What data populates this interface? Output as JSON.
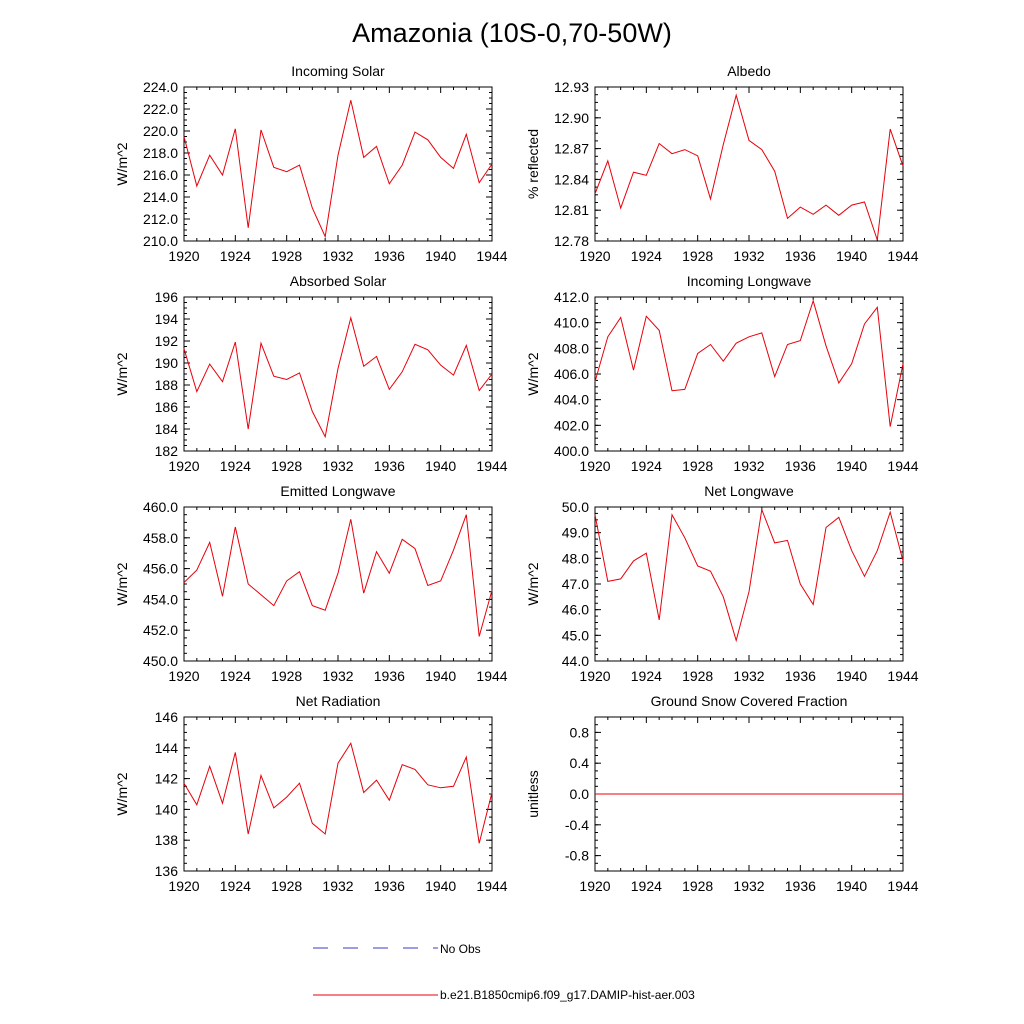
{
  "figure": {
    "title": "Amazonia (10S-0,70-50W)",
    "colors": {
      "model_line": "#e8000b",
      "obs_line": "#3b3bc8",
      "axis": "#000000"
    }
  },
  "legend": {
    "obs_label": "No Obs",
    "model_label": "b.e21.B1850cmip6.f09_g17.DAMIP-hist-aer.003"
  },
  "chart_data": [
    {
      "type": "line",
      "title": "Incoming Solar",
      "ylabel": "W/m^2",
      "x": [
        1920,
        1921,
        1922,
        1923,
        1924,
        1925,
        1926,
        1927,
        1928,
        1929,
        1930,
        1931,
        1932,
        1933,
        1934,
        1935,
        1936,
        1937,
        1938,
        1939,
        1940,
        1941,
        1942,
        1943,
        1944
      ],
      "xlim": [
        1920,
        1944
      ],
      "xticks": [
        "1920",
        "1924",
        "1928",
        "1932",
        "1936",
        "1940",
        "1944"
      ],
      "ylim": [
        210,
        224
      ],
      "yticks": [
        "210.0",
        "212.0",
        "214.0",
        "216.0",
        "218.0",
        "220.0",
        "222.0",
        "224.0"
      ],
      "series": [
        {
          "name": "b.e21.B1850cmip6.f09_g17.DAMIP-hist-aer.003",
          "values": [
            219.5,
            215.0,
            217.8,
            216.0,
            220.2,
            211.2,
            220.1,
            216.7,
            216.3,
            216.9,
            213.0,
            210.4,
            217.8,
            222.8,
            217.6,
            218.6,
            215.2,
            216.9,
            219.9,
            219.2,
            217.6,
            216.6,
            219.7,
            215.3,
            217.0
          ]
        }
      ]
    },
    {
      "type": "line",
      "title": "Albedo",
      "ylabel": "% reflected",
      "x": [
        1920,
        1921,
        1922,
        1923,
        1924,
        1925,
        1926,
        1927,
        1928,
        1929,
        1930,
        1931,
        1932,
        1933,
        1934,
        1935,
        1936,
        1937,
        1938,
        1939,
        1940,
        1941,
        1942,
        1943,
        1944
      ],
      "xlim": [
        1920,
        1944
      ],
      "xticks": [
        "1920",
        "1924",
        "1928",
        "1932",
        "1936",
        "1940",
        "1944"
      ],
      "ylim": [
        12.78,
        12.93
      ],
      "yticks": [
        "12.78",
        "12.81",
        "12.84",
        "12.87",
        "12.90",
        "12.93"
      ],
      "series": [
        {
          "name": "b.e21.B1850cmip6.f09_g17.DAMIP-hist-aer.003",
          "values": [
            12.826,
            12.858,
            12.812,
            12.847,
            12.844,
            12.875,
            12.865,
            12.869,
            12.863,
            12.821,
            12.874,
            12.922,
            12.878,
            12.869,
            12.848,
            12.802,
            12.813,
            12.806,
            12.815,
            12.805,
            12.815,
            12.818,
            12.781,
            12.889,
            12.853
          ]
        }
      ]
    },
    {
      "type": "line",
      "title": "Absorbed Solar",
      "ylabel": "W/m^2",
      "x": [
        1920,
        1921,
        1922,
        1923,
        1924,
        1925,
        1926,
        1927,
        1928,
        1929,
        1930,
        1931,
        1932,
        1933,
        1934,
        1935,
        1936,
        1937,
        1938,
        1939,
        1940,
        1941,
        1942,
        1943,
        1944
      ],
      "xlim": [
        1920,
        1944
      ],
      "xticks": [
        "1920",
        "1924",
        "1928",
        "1932",
        "1936",
        "1940",
        "1944"
      ],
      "ylim": [
        182,
        196
      ],
      "yticks": [
        "182",
        "184",
        "186",
        "188",
        "190",
        "192",
        "194",
        "196"
      ],
      "series": [
        {
          "name": "b.e21.B1850cmip6.f09_g17.DAMIP-hist-aer.003",
          "values": [
            191.3,
            187.4,
            189.9,
            188.3,
            191.9,
            184.0,
            191.8,
            188.8,
            188.5,
            189.1,
            185.6,
            183.3,
            189.5,
            194.1,
            189.7,
            190.6,
            187.6,
            189.2,
            191.7,
            191.2,
            189.8,
            188.9,
            191.6,
            187.5,
            189.0
          ]
        }
      ]
    },
    {
      "type": "line",
      "title": "Incoming Longwave",
      "ylabel": "W/m^2",
      "x": [
        1920,
        1921,
        1922,
        1923,
        1924,
        1925,
        1926,
        1927,
        1928,
        1929,
        1930,
        1931,
        1932,
        1933,
        1934,
        1935,
        1936,
        1937,
        1938,
        1939,
        1940,
        1941,
        1942,
        1943,
        1944
      ],
      "xlim": [
        1920,
        1944
      ],
      "xticks": [
        "1920",
        "1924",
        "1928",
        "1932",
        "1936",
        "1940",
        "1944"
      ],
      "ylim": [
        400,
        412
      ],
      "yticks": [
        "400.0",
        "402.0",
        "404.0",
        "406.0",
        "408.0",
        "410.0",
        "412.0"
      ],
      "series": [
        {
          "name": "b.e21.B1850cmip6.f09_g17.DAMIP-hist-aer.003",
          "values": [
            405.4,
            408.9,
            410.4,
            406.3,
            410.5,
            409.4,
            404.7,
            404.8,
            407.6,
            408.3,
            407.0,
            408.4,
            408.9,
            409.2,
            405.8,
            408.3,
            408.6,
            411.7,
            408.2,
            405.3,
            406.8,
            409.9,
            411.2,
            401.9,
            406.8
          ]
        }
      ]
    },
    {
      "type": "line",
      "title": "Emitted Longwave",
      "ylabel": "W/m^2",
      "x": [
        1920,
        1921,
        1922,
        1923,
        1924,
        1925,
        1926,
        1927,
        1928,
        1929,
        1930,
        1931,
        1932,
        1933,
        1934,
        1935,
        1936,
        1937,
        1938,
        1939,
        1940,
        1941,
        1942,
        1943,
        1944
      ],
      "xlim": [
        1920,
        1944
      ],
      "xticks": [
        "1920",
        "1924",
        "1928",
        "1932",
        "1936",
        "1940",
        "1944"
      ],
      "ylim": [
        450,
        460
      ],
      "yticks": [
        "450.0",
        "452.0",
        "454.0",
        "456.0",
        "458.0",
        "460.0"
      ],
      "series": [
        {
          "name": "b.e21.B1850cmip6.f09_g17.DAMIP-hist-aer.003",
          "values": [
            455.1,
            455.9,
            457.7,
            454.2,
            458.7,
            455.0,
            454.3,
            453.6,
            455.2,
            455.8,
            453.6,
            453.3,
            455.7,
            459.2,
            454.4,
            457.1,
            455.7,
            457.9,
            457.3,
            454.9,
            455.2,
            457.2,
            459.5,
            451.6,
            454.6
          ]
        }
      ]
    },
    {
      "type": "line",
      "title": "Net Longwave",
      "ylabel": "W/m^2",
      "x": [
        1920,
        1921,
        1922,
        1923,
        1924,
        1925,
        1926,
        1927,
        1928,
        1929,
        1930,
        1931,
        1932,
        1933,
        1934,
        1935,
        1936,
        1937,
        1938,
        1939,
        1940,
        1941,
        1942,
        1943,
        1944
      ],
      "xlim": [
        1920,
        1944
      ],
      "xticks": [
        "1920",
        "1924",
        "1928",
        "1932",
        "1936",
        "1940",
        "1944"
      ],
      "ylim": [
        44,
        50
      ],
      "yticks": [
        "44.0",
        "45.0",
        "46.0",
        "47.0",
        "48.0",
        "49.0",
        "50.0"
      ],
      "series": [
        {
          "name": "b.e21.B1850cmip6.f09_g17.DAMIP-hist-aer.003",
          "values": [
            49.7,
            47.1,
            47.2,
            47.9,
            48.2,
            45.6,
            49.7,
            48.8,
            47.7,
            47.5,
            46.5,
            44.8,
            46.7,
            49.9,
            48.6,
            48.7,
            47.0,
            46.2,
            49.2,
            49.6,
            48.3,
            47.3,
            48.3,
            49.8,
            47.9
          ]
        }
      ]
    },
    {
      "type": "line",
      "title": "Net Radiation",
      "ylabel": "W/m^2",
      "x": [
        1920,
        1921,
        1922,
        1923,
        1924,
        1925,
        1926,
        1927,
        1928,
        1929,
        1930,
        1931,
        1932,
        1933,
        1934,
        1935,
        1936,
        1937,
        1938,
        1939,
        1940,
        1941,
        1942,
        1943,
        1944
      ],
      "xlim": [
        1920,
        1944
      ],
      "xticks": [
        "1920",
        "1924",
        "1928",
        "1932",
        "1936",
        "1940",
        "1944"
      ],
      "ylim": [
        136,
        146
      ],
      "yticks": [
        "136",
        "138",
        "140",
        "142",
        "144",
        "146"
      ],
      "series": [
        {
          "name": "b.e21.B1850cmip6.f09_g17.DAMIP-hist-aer.003",
          "values": [
            141.7,
            140.3,
            142.8,
            140.4,
            143.7,
            138.4,
            142.2,
            140.1,
            140.8,
            141.7,
            139.1,
            138.4,
            143.0,
            144.3,
            141.1,
            141.9,
            140.6,
            142.9,
            142.6,
            141.6,
            141.4,
            141.5,
            143.4,
            137.8,
            141.1
          ]
        }
      ]
    },
    {
      "type": "line",
      "title": "Ground Snow Covered Fraction",
      "ylabel": "unitless",
      "x": [
        1920,
        1921,
        1922,
        1923,
        1924,
        1925,
        1926,
        1927,
        1928,
        1929,
        1930,
        1931,
        1932,
        1933,
        1934,
        1935,
        1936,
        1937,
        1938,
        1939,
        1940,
        1941,
        1942,
        1943,
        1944
      ],
      "xlim": [
        1920,
        1944
      ],
      "xticks": [
        "1920",
        "1924",
        "1928",
        "1932",
        "1936",
        "1940",
        "1944"
      ],
      "ylim": [
        -1.0,
        1.0
      ],
      "yticks": [
        "-0.8",
        "-0.4",
        "0.0",
        "0.4",
        "0.8"
      ],
      "ytick_values": [
        -0.8,
        -0.4,
        0.0,
        0.4,
        0.8
      ],
      "series": [
        {
          "name": "b.e21.B1850cmip6.f09_g17.DAMIP-hist-aer.003",
          "values": [
            0,
            0,
            0,
            0,
            0,
            0,
            0,
            0,
            0,
            0,
            0,
            0,
            0,
            0,
            0,
            0,
            0,
            0,
            0,
            0,
            0,
            0,
            0,
            0,
            0
          ]
        }
      ]
    }
  ]
}
